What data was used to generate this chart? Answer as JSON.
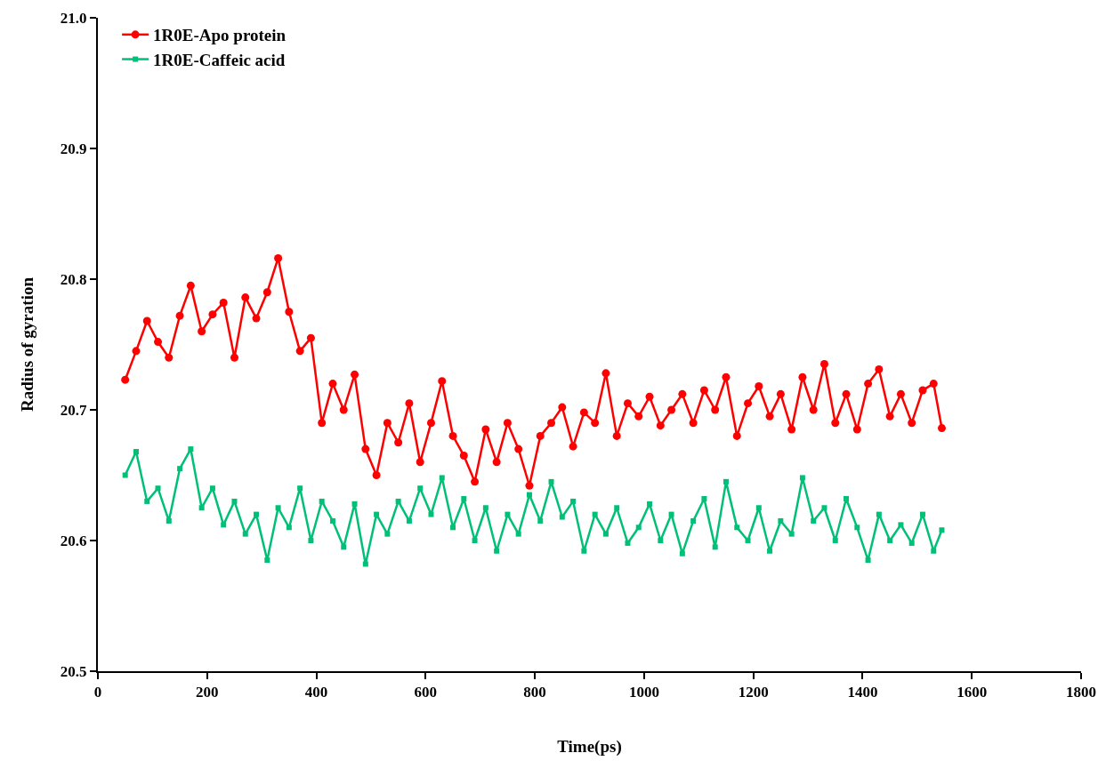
{
  "chart_data": {
    "type": "line",
    "xlabel": "Time(ps)",
    "ylabel": "Radius of gyration",
    "x": [
      50,
      70,
      90,
      110,
      130,
      150,
      170,
      190,
      210,
      230,
      250,
      270,
      290,
      310,
      330,
      350,
      370,
      390,
      410,
      430,
      450,
      470,
      490,
      510,
      530,
      550,
      570,
      590,
      610,
      630,
      650,
      670,
      690,
      710,
      730,
      750,
      770,
      790,
      810,
      830,
      850,
      870,
      890,
      910,
      930,
      950,
      970,
      990,
      1010,
      1030,
      1050,
      1070,
      1090,
      1110,
      1130,
      1150,
      1170,
      1190,
      1210,
      1230,
      1250,
      1270,
      1290,
      1310,
      1330,
      1350,
      1370,
      1390,
      1410,
      1430,
      1450,
      1470,
      1490,
      1510,
      1530,
      1545
    ],
    "series": [
      {
        "name": "1R0E-Apo protein",
        "color": "#ff0000",
        "marker": "circle",
        "values": [
          20.723,
          20.745,
          20.768,
          20.752,
          20.74,
          20.772,
          20.795,
          20.76,
          20.773,
          20.782,
          20.74,
          20.786,
          20.77,
          20.79,
          20.816,
          20.775,
          20.745,
          20.755,
          20.69,
          20.72,
          20.7,
          20.727,
          20.67,
          20.65,
          20.69,
          20.675,
          20.705,
          20.66,
          20.69,
          20.722,
          20.68,
          20.665,
          20.645,
          20.685,
          20.66,
          20.69,
          20.67,
          20.642,
          20.68,
          20.69,
          20.702,
          20.672,
          20.698,
          20.69,
          20.728,
          20.68,
          20.705,
          20.695,
          20.71,
          20.688,
          20.7,
          20.712,
          20.69,
          20.715,
          20.7,
          20.725,
          20.68,
          20.705,
          20.718,
          20.695,
          20.712,
          20.685,
          20.725,
          20.7,
          20.735,
          20.69,
          20.712,
          20.685,
          20.72,
          20.731,
          20.695,
          20.712,
          20.69,
          20.715,
          20.72,
          20.686
        ]
      },
      {
        "name": "1R0E-Caffeic acid",
        "color": "#00c078",
        "marker": "square",
        "values": [
          20.65,
          20.668,
          20.63,
          20.64,
          20.615,
          20.655,
          20.67,
          20.625,
          20.64,
          20.612,
          20.63,
          20.605,
          20.62,
          20.585,
          20.625,
          20.61,
          20.64,
          20.6,
          20.63,
          20.615,
          20.595,
          20.628,
          20.582,
          20.62,
          20.605,
          20.63,
          20.615,
          20.64,
          20.62,
          20.648,
          20.61,
          20.632,
          20.6,
          20.625,
          20.592,
          20.62,
          20.605,
          20.635,
          20.615,
          20.645,
          20.618,
          20.63,
          20.592,
          20.62,
          20.605,
          20.625,
          20.598,
          20.61,
          20.628,
          20.6,
          20.62,
          20.59,
          20.615,
          20.632,
          20.595,
          20.645,
          20.61,
          20.6,
          20.625,
          20.592,
          20.615,
          20.605,
          20.648,
          20.615,
          20.625,
          20.6,
          20.632,
          20.61,
          20.585,
          20.62,
          20.6,
          20.612,
          20.598,
          20.62,
          20.592,
          20.608
        ]
      }
    ],
    "xlim": [
      0,
      1800
    ],
    "xticks": [
      0,
      200,
      400,
      600,
      800,
      1000,
      1200,
      1400,
      1600,
      1800
    ],
    "ylim": [
      20.5,
      21.0
    ],
    "yticks": [
      {
        "value": 20.5,
        "label": "20.5"
      },
      {
        "value": 20.6,
        "label": "20.6"
      },
      {
        "value": 20.7,
        "label": "20.7"
      },
      {
        "value": 20.8,
        "label": "20.8"
      },
      {
        "value": 20.9,
        "label": "20.9"
      },
      {
        "value": 21.0,
        "label": "21.0"
      }
    ],
    "legend": "top left",
    "line_style": "solid"
  }
}
